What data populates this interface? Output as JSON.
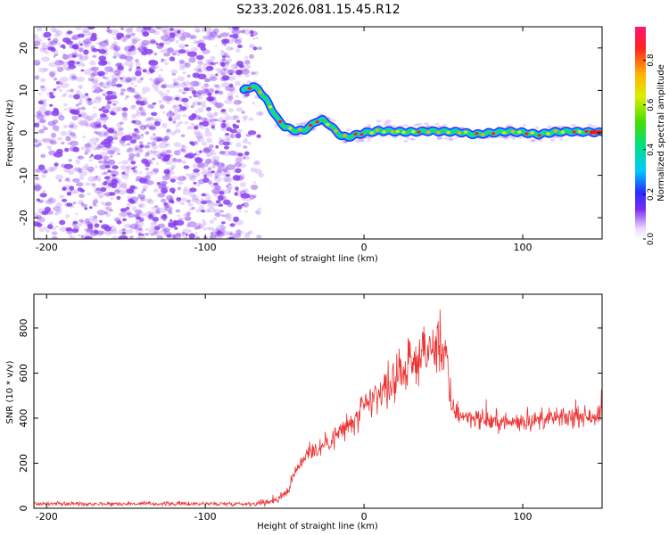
{
  "figure_title": "S233.2026.081.15.45.R12",
  "chart_data": [
    {
      "type": "heatmap",
      "title": "",
      "xlabel": "Height of straight line (km)",
      "ylabel": "Frequency (Hz)",
      "xlim": [
        -208,
        150
      ],
      "ylim": [
        -25,
        25
      ],
      "xticks": [
        -200,
        -100,
        0,
        100
      ],
      "yticks": [
        -20,
        -10,
        0,
        10,
        20
      ],
      "xtick_labels": [
        "-200",
        "-100",
        "0",
        "100"
      ],
      "ytick_labels": [
        "-20",
        "-10",
        "0",
        "10",
        "20"
      ],
      "noise_region_x": [
        -208,
        -62
      ],
      "signal_track": {
        "x": [
          -76,
          -70,
          -66,
          -62,
          -58,
          -54,
          -50,
          -46,
          -42,
          -38,
          -34,
          -30,
          -26,
          -22,
          -18,
          -14,
          -10,
          -6,
          -2,
          0,
          10,
          20,
          30,
          40,
          50,
          60,
          70,
          80,
          90,
          100,
          110,
          120,
          130,
          140,
          150
        ],
        "frequency_hz": [
          10,
          11,
          10,
          8,
          5.5,
          3,
          1.5,
          0.8,
          0.5,
          0.6,
          1.5,
          2.8,
          3,
          2,
          0.5,
          -0.8,
          -1,
          -0.6,
          -0.2,
          0,
          0.5,
          0.3,
          0.2,
          0.4,
          0.3,
          0.2,
          -0.4,
          0,
          0.3,
          0.1,
          -0.4,
          0.2,
          0.3,
          0.2,
          0.1
        ]
      },
      "colorbar": {
        "label": "Normalized spectral amplitude",
        "range": [
          0,
          0.95
        ],
        "ticks": [
          0.0,
          0.2,
          0.4,
          0.6,
          0.8
        ],
        "tick_labels": [
          "0.0",
          "0.2",
          "0.4",
          "0.6",
          "0.8"
        ]
      }
    },
    {
      "type": "line",
      "title": "",
      "xlabel": "Height of straight line (km)",
      "ylabel": "SNR (10 * v/v)",
      "xlim": [
        -208,
        150
      ],
      "ylim": [
        0,
        950
      ],
      "xticks": [
        -200,
        -100,
        0,
        100
      ],
      "yticks": [
        0,
        200,
        400,
        600,
        800
      ],
      "xtick_labels": [
        "-200",
        "-100",
        "0",
        "100"
      ],
      "ytick_labels": [
        "0",
        "200",
        "400",
        "600",
        "800"
      ],
      "series": [
        {
          "name": "SNR",
          "color": "#ee3333",
          "x": [
            -208,
            -150,
            -100,
            -70,
            -62,
            -55,
            -48,
            -42,
            -36,
            -30,
            -24,
            -18,
            -12,
            -6,
            0,
            6,
            12,
            18,
            24,
            30,
            36,
            42,
            48,
            52,
            54,
            58,
            70,
            80,
            90,
            100,
            110,
            120,
            130,
            140,
            150
          ],
          "values": [
            20,
            20,
            20,
            20,
            25,
            40,
            80,
            180,
            250,
            260,
            290,
            320,
            360,
            380,
            440,
            490,
            520,
            560,
            600,
            640,
            680,
            700,
            710,
            700,
            470,
            420,
            400,
            385,
            380,
            385,
            390,
            400,
            400,
            410,
            415
          ]
        }
      ]
    }
  ],
  "colors": {
    "noise": "#8a3ff0",
    "snr_line": "#ee3333",
    "axis": "#000000"
  }
}
